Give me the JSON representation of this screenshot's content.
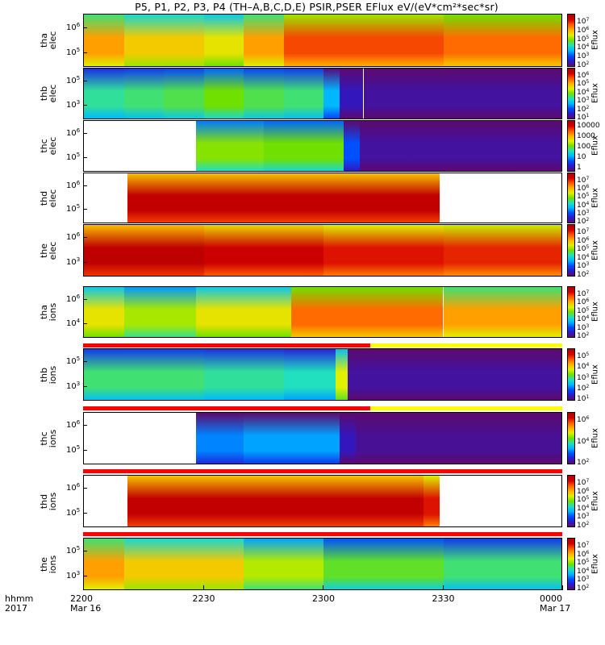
{
  "title": "P5, P1, P2, P3, P4 (TH–A,B,C,D,E) PSIR,PSER EFlux eV/(eV*cm²*sec*sr)",
  "x_axis": {
    "name_line1": "hhmm",
    "name_line2": "2017",
    "ticks": [
      {
        "value": "2200",
        "date": "Mar 16"
      },
      {
        "value": "2230",
        "date": ""
      },
      {
        "value": "2300",
        "date": ""
      },
      {
        "value": "2330",
        "date": ""
      },
      {
        "value": "0000",
        "date": "Mar 17"
      }
    ]
  },
  "colors": {
    "bar_red": "#ff0000",
    "bar_yellow": "#ffff00",
    "colormap": [
      "#5c0a6e",
      "#2a1ad0",
      "#0050ff",
      "#00b8ff",
      "#20e0c0",
      "#70e000",
      "#e0f000",
      "#ffb000",
      "#ff5a00",
      "#d40000",
      "#b00000"
    ]
  },
  "chart_data": [
    {
      "type": "heatmap",
      "panel": "tha elec",
      "ylabel_line1": "tha",
      "ylabel_line2": "elec",
      "yticks": [
        "10",
        "10"
      ],
      "ytick_exp": [
        "6",
        "5"
      ],
      "colorbar_label": "Eflux",
      "colorbar_ticks": [
        {
          "base": "10",
          "exp": "7"
        },
        {
          "base": "10",
          "exp": "6"
        },
        {
          "base": "10",
          "exp": "5"
        },
        {
          "base": "10",
          "exp": "4"
        },
        {
          "base": "10",
          "exp": "3"
        },
        {
          "base": "10",
          "exp": "2"
        }
      ],
      "segments": [
        {
          "start": "2200",
          "end": "2210",
          "level": 0.72
        },
        {
          "start": "2210",
          "end": "2230",
          "level": 0.66
        },
        {
          "start": "2230",
          "end": "2240",
          "level": 0.62
        },
        {
          "start": "2240",
          "end": "2250",
          "level": 0.72
        },
        {
          "start": "2250",
          "end": "2330",
          "level": 0.82
        },
        {
          "start": "2330",
          "end": "0000",
          "level": 0.78
        }
      ]
    },
    {
      "type": "heatmap",
      "panel": "thb elec",
      "ylabel_line1": "thb",
      "ylabel_line2": "elec",
      "yticks": [
        "10",
        "10"
      ],
      "ytick_exp": [
        "5",
        "3"
      ],
      "colorbar_label": "Eflux",
      "colorbar_ticks": [
        {
          "base": "10",
          "exp": "6"
        },
        {
          "base": "10",
          "exp": "5"
        },
        {
          "base": "10",
          "exp": "4"
        },
        {
          "base": "10",
          "exp": "3"
        },
        {
          "base": "10",
          "exp": "2"
        },
        {
          "base": "10",
          "exp": "1"
        }
      ],
      "segments": [
        {
          "start": "2200",
          "end": "2210",
          "level": 0.42
        },
        {
          "start": "2210",
          "end": "2220",
          "level": 0.44
        },
        {
          "start": "2220",
          "end": "2230",
          "level": 0.46
        },
        {
          "start": "2230",
          "end": "2240",
          "level": 0.5
        },
        {
          "start": "2240",
          "end": "2250",
          "level": 0.46
        },
        {
          "start": "2250",
          "end": "2300",
          "level": 0.44
        },
        {
          "start": "2300",
          "end": "2304",
          "level": 0.3
        },
        {
          "start": "2304",
          "end": "2310",
          "level": 0.08
        },
        {
          "start": "2310",
          "end": "0000",
          "level": 0.05
        }
      ]
    },
    {
      "type": "heatmap",
      "panel": "thc elec",
      "ylabel_line1": "thc",
      "ylabel_line2": "elec",
      "yticks": [
        "10",
        "10"
      ],
      "ytick_exp": [
        "6",
        "5"
      ],
      "colorbar_label": "Eflux",
      "colorbar_ticks": [
        {
          "base": "10000",
          "exp": ""
        },
        {
          "base": "1000",
          "exp": ""
        },
        {
          "base": "100",
          "exp": ""
        },
        {
          "base": "10",
          "exp": ""
        },
        {
          "base": "1",
          "exp": ""
        }
      ],
      "segments": [
        {
          "start": "2200",
          "end": "2228",
          "level": null
        },
        {
          "start": "2228",
          "end": "2245",
          "level": 0.52
        },
        {
          "start": "2245",
          "end": "2305",
          "level": 0.5
        },
        {
          "start": "2305",
          "end": "2309",
          "level": 0.2
        },
        {
          "start": "2309",
          "end": "0000",
          "level": 0.05
        }
      ]
    },
    {
      "type": "heatmap",
      "panel": "thd elec",
      "ylabel_line1": "thd",
      "ylabel_line2": "elec",
      "yticks": [
        "10",
        "10"
      ],
      "ytick_exp": [
        "6",
        "5"
      ],
      "colorbar_label": "Eflux",
      "colorbar_ticks": [
        {
          "base": "10",
          "exp": "7"
        },
        {
          "base": "10",
          "exp": "6"
        },
        {
          "base": "10",
          "exp": "5"
        },
        {
          "base": "10",
          "exp": "4"
        },
        {
          "base": "10",
          "exp": "3"
        },
        {
          "base": "10",
          "exp": "2"
        }
      ],
      "segments": [
        {
          "start": "2200",
          "end": "2211",
          "level": null
        },
        {
          "start": "2211",
          "end": "2329",
          "level": 0.95
        },
        {
          "start": "2329",
          "end": "0000",
          "level": null
        }
      ]
    },
    {
      "type": "heatmap",
      "panel": "the elec",
      "ylabel_line1": "the",
      "ylabel_line2": "elec",
      "yticks": [
        "10",
        "10"
      ],
      "ytick_exp": [
        "6",
        "3"
      ],
      "colorbar_label": "Eflux",
      "colorbar_ticks": [
        {
          "base": "10",
          "exp": "7"
        },
        {
          "base": "10",
          "exp": "6"
        },
        {
          "base": "10",
          "exp": "5"
        },
        {
          "base": "10",
          "exp": "4"
        },
        {
          "base": "10",
          "exp": "3"
        },
        {
          "base": "10",
          "exp": "2"
        }
      ],
      "segments": [
        {
          "start": "2200",
          "end": "2230",
          "level": 0.96
        },
        {
          "start": "2230",
          "end": "2300",
          "level": 0.92
        },
        {
          "start": "2300",
          "end": "2330",
          "level": 0.88
        },
        {
          "start": "2330",
          "end": "0000",
          "level": 0.86
        }
      ]
    },
    {
      "type": "heatmap",
      "panel": "tha ions",
      "ylabel_line1": "tha",
      "ylabel_line2": "ions",
      "yticks": [
        "10",
        "10"
      ],
      "ytick_exp": [
        "6",
        "4"
      ],
      "colorbar_label": "Eflux",
      "colorbar_ticks": [
        {
          "base": "10",
          "exp": "7"
        },
        {
          "base": "10",
          "exp": "6"
        },
        {
          "base": "10",
          "exp": "5"
        },
        {
          "base": "10",
          "exp": "4"
        },
        {
          "base": "10",
          "exp": "3"
        },
        {
          "base": "10",
          "exp": "2"
        }
      ],
      "segments": [
        {
          "start": "2200",
          "end": "2210",
          "level": 0.62
        },
        {
          "start": "2210",
          "end": "2228",
          "level": 0.55
        },
        {
          "start": "2228",
          "end": "2252",
          "level": 0.62
        },
        {
          "start": "2252",
          "end": "2330",
          "level": 0.78
        },
        {
          "start": "2330",
          "end": "0000",
          "level": 0.72
        }
      ],
      "flag_bar": [
        {
          "start": "2200",
          "end": "2312",
          "color": "red"
        },
        {
          "start": "2312",
          "end": "0000",
          "color": "yellow"
        }
      ]
    },
    {
      "type": "heatmap",
      "panel": "thb ions",
      "ylabel_line1": "thb",
      "ylabel_line2": "ions",
      "yticks": [
        "10",
        "10"
      ],
      "ytick_exp": [
        "5",
        "3"
      ],
      "colorbar_label": "Eflux",
      "colorbar_ticks": [
        {
          "base": "10",
          "exp": "5"
        },
        {
          "base": "10",
          "exp": "4"
        },
        {
          "base": "10",
          "exp": "3"
        },
        {
          "base": "10",
          "exp": "2"
        },
        {
          "base": "10",
          "exp": "1"
        }
      ],
      "segments": [
        {
          "start": "2200",
          "end": "2230",
          "level": 0.44
        },
        {
          "start": "2230",
          "end": "2250",
          "level": 0.42
        },
        {
          "start": "2250",
          "end": "2303",
          "level": 0.4
        },
        {
          "start": "2303",
          "end": "2306",
          "level": 0.6
        },
        {
          "start": "2306",
          "end": "0000",
          "level": 0.05
        }
      ],
      "flag_bar": [
        {
          "start": "2200",
          "end": "2312",
          "color": "red"
        },
        {
          "start": "2312",
          "end": "0000",
          "color": "yellow"
        }
      ]
    },
    {
      "type": "heatmap",
      "panel": "thc ions",
      "ylabel_line1": "thc",
      "ylabel_line2": "ions",
      "yticks": [
        "10",
        "10"
      ],
      "ytick_exp": [
        "6",
        "5"
      ],
      "colorbar_label": "Eflux",
      "colorbar_ticks": [
        {
          "base": "10",
          "exp": "6"
        },
        {
          "base": "10",
          "exp": "4"
        },
        {
          "base": "10",
          "exp": "2"
        }
      ],
      "segments": [
        {
          "start": "2200",
          "end": "2228",
          "level": null
        },
        {
          "start": "2228",
          "end": "2240",
          "level": 0.25
        },
        {
          "start": "2240",
          "end": "2304",
          "level": 0.28
        },
        {
          "start": "2304",
          "end": "2308",
          "level": 0.08
        },
        {
          "start": "2308",
          "end": "0000",
          "level": 0.04
        }
      ],
      "flag_bar": [
        {
          "start": "2200",
          "end": "0000",
          "color": "red"
        }
      ]
    },
    {
      "type": "heatmap",
      "panel": "thd ions",
      "ylabel_line1": "thd",
      "ylabel_line2": "ions",
      "yticks": [
        "10",
        "10"
      ],
      "ytick_exp": [
        "6",
        "5"
      ],
      "colorbar_label": "Eflux",
      "colorbar_ticks": [
        {
          "base": "10",
          "exp": "7"
        },
        {
          "base": "10",
          "exp": "6"
        },
        {
          "base": "10",
          "exp": "5"
        },
        {
          "base": "10",
          "exp": "4"
        },
        {
          "base": "10",
          "exp": "3"
        },
        {
          "base": "10",
          "exp": "2"
        }
      ],
      "segments": [
        {
          "start": "2200",
          "end": "2211",
          "level": null
        },
        {
          "start": "2211",
          "end": "2325",
          "level": 0.95
        },
        {
          "start": "2325",
          "end": "2329",
          "level": 0.88
        },
        {
          "start": "2329",
          "end": "0000",
          "level": null
        }
      ],
      "flag_bar": [
        {
          "start": "2200",
          "end": "0000",
          "color": "red"
        }
      ]
    },
    {
      "type": "heatmap",
      "panel": "the ions",
      "ylabel_line1": "the",
      "ylabel_line2": "ions",
      "yticks": [
        "10",
        "10"
      ],
      "ytick_exp": [
        "5",
        "3"
      ],
      "colorbar_label": "Eflux",
      "colorbar_ticks": [
        {
          "base": "10",
          "exp": "7"
        },
        {
          "base": "10",
          "exp": "6"
        },
        {
          "base": "10",
          "exp": "5"
        },
        {
          "base": "10",
          "exp": "4"
        },
        {
          "base": "10",
          "exp": "3"
        },
        {
          "base": "10",
          "exp": "2"
        }
      ],
      "segments": [
        {
          "start": "2200",
          "end": "2210",
          "level": 0.72
        },
        {
          "start": "2210",
          "end": "2240",
          "level": 0.66
        },
        {
          "start": "2240",
          "end": "2300",
          "level": 0.56
        },
        {
          "start": "2300",
          "end": "2330",
          "level": 0.48
        },
        {
          "start": "2330",
          "end": "0000",
          "level": 0.44
        }
      ]
    }
  ]
}
